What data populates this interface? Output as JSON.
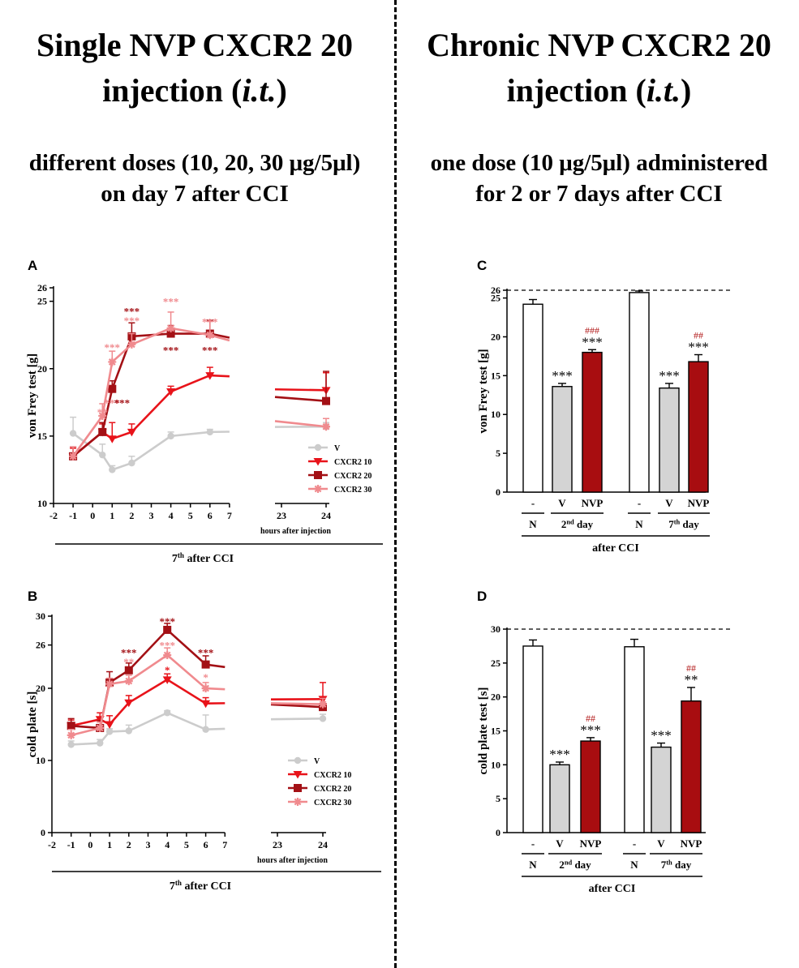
{
  "left_header": {
    "title_line1": "Single NVP CXCR2 20",
    "title_line2_a": "injection (",
    "title_line2_i": "i.t.",
    "title_line2_b": ")",
    "sub_line1": "different doses (10, 20, 30 μg/5μl)",
    "sub_line2": "on day 7 after CCI"
  },
  "right_header": {
    "title_line1": "Chronic NVP CXCR2 20",
    "title_line2_a": "injection (",
    "title_line2_i": "i.t.",
    "title_line2_b": ")",
    "sub_line1": "one dose (10 μg/5μl) administered",
    "sub_line2": "for 2 or 7 days after CCI"
  },
  "colors": {
    "V": "#cccccc",
    "CXCR2 10": "#e8131a",
    "CXCR2 20": "#a31015",
    "CXCR2 30": "#f08a8e",
    "NVP": "#a80d10",
    "sig": "#b21a1a"
  },
  "chart_data": [
    {
      "panel": "A",
      "type": "line",
      "ylabel": "von Frey test [g]",
      "xlabel": "hours after injection",
      "group_label": "7",
      "group_label_sup": "th",
      "group_label_rest": " after CCI",
      "ylim": [
        10,
        26
      ],
      "yticks": [
        "10",
        "15",
        "20",
        "25",
        "26"
      ],
      "xticks": [
        "-2",
        "-1",
        "0",
        "1",
        "2",
        "3",
        "4",
        "5",
        "6",
        "7",
        "23",
        "24"
      ],
      "series": [
        {
          "name": "V",
          "marker": "circle",
          "x": [
            -1,
            0.5,
            1,
            2,
            4,
            6,
            24
          ],
          "values": [
            15.2,
            13.6,
            12.5,
            13.0,
            15.0,
            15.3,
            15.7
          ],
          "err": [
            1.2,
            0.8,
            0.3,
            0.5,
            0.3,
            0.2,
            0.3
          ]
        },
        {
          "name": "CXCR2 10",
          "marker": "tri-down",
          "x": [
            -1,
            0.5,
            1,
            2,
            4,
            6,
            24
          ],
          "values": [
            13.5,
            15.3,
            14.8,
            15.3,
            18.3,
            19.5,
            18.4
          ],
          "err": [
            0.6,
            0.6,
            1.2,
            0.6,
            0.4,
            0.6,
            1.3
          ]
        },
        {
          "name": "CXCR2 20",
          "marker": "square",
          "x": [
            -1,
            0.5,
            1,
            2,
            4,
            6,
            24
          ],
          "values": [
            13.5,
            15.3,
            18.5,
            22.4,
            22.6,
            22.6,
            17.6
          ],
          "err": [
            0.7,
            0.7,
            0.6,
            1.0,
            0.6,
            1.0,
            2.2
          ]
        },
        {
          "name": "CXCR2 30",
          "marker": "star",
          "x": [
            -1,
            0.5,
            1,
            2,
            4,
            6,
            24
          ],
          "values": [
            13.5,
            16.5,
            20.5,
            21.8,
            23.0,
            22.5,
            15.7
          ],
          "err": [
            0.7,
            0.9,
            0.8,
            0.8,
            1.2,
            1.0,
            0.6
          ]
        }
      ],
      "annotations": [
        {
          "x": 0.5,
          "y": 16.8,
          "text": "**",
          "color": "#f08a8e"
        },
        {
          "x": 1,
          "y": 21.6,
          "text": "***",
          "color": "#f08a8e"
        },
        {
          "x": 1,
          "y": 17.5,
          "text": "***",
          "color": "#f08a8e"
        },
        {
          "x": 1.5,
          "y": 17.5,
          "text": "***",
          "color": "#a31015"
        },
        {
          "x": 2,
          "y": 24.3,
          "text": "***",
          "color": "#a31015"
        },
        {
          "x": 2,
          "y": 23.6,
          "text": "***",
          "color": "#f08a8e"
        },
        {
          "x": 4,
          "y": 25.0,
          "text": "***",
          "color": "#f08a8e"
        },
        {
          "x": 4,
          "y": 21.4,
          "text": "***",
          "color": "#a31015"
        },
        {
          "x": 6,
          "y": 23.5,
          "text": "***",
          "color": "#f08a8e"
        },
        {
          "x": 6,
          "y": 21.4,
          "text": "***",
          "color": "#a31015"
        }
      ]
    },
    {
      "panel": "B",
      "type": "line",
      "ylabel": "cold plate [s]",
      "xlabel": "hours after injection",
      "group_label": "7",
      "group_label_sup": "th",
      "group_label_rest": " after CCI",
      "ylim": [
        0,
        30
      ],
      "yticks": [
        "0",
        "10",
        "20",
        "26",
        "30"
      ],
      "xticks": [
        "-2",
        "-1",
        "0",
        "1",
        "2",
        "3",
        "4",
        "5",
        "6",
        "7",
        "23",
        "24"
      ],
      "series": [
        {
          "name": "V",
          "marker": "circle",
          "x": [
            -1,
            0.5,
            1,
            2,
            4,
            6,
            24
          ],
          "values": [
            12.2,
            12.4,
            14.0,
            14.1,
            16.6,
            14.3,
            15.8
          ],
          "err": [
            0.5,
            0.5,
            0.4,
            0.8,
            0.3,
            2.0,
            0.6
          ]
        },
        {
          "name": "CXCR2 10",
          "marker": "tri-down",
          "x": [
            -1,
            0.5,
            1,
            2,
            4,
            6,
            24
          ],
          "values": [
            14.8,
            15.7,
            15.0,
            18.0,
            21.2,
            17.9,
            18.5
          ],
          "err": [
            0.8,
            0.9,
            1.2,
            1.0,
            0.8,
            0.8,
            2.3
          ]
        },
        {
          "name": "CXCR2 20",
          "marker": "square",
          "x": [
            -1,
            0.5,
            1,
            2,
            4,
            6,
            24
          ],
          "values": [
            14.8,
            14.5,
            20.8,
            22.5,
            28.1,
            23.3,
            17.4
          ],
          "err": [
            1.0,
            1.0,
            1.5,
            1.0,
            0.9,
            1.2,
            1.2
          ]
        },
        {
          "name": "CXCR2 30",
          "marker": "star",
          "x": [
            -1,
            0.5,
            1,
            2,
            4,
            6,
            24
          ],
          "values": [
            13.5,
            14.5,
            20.6,
            21.0,
            24.6,
            20.0,
            17.8
          ],
          "err": [
            0.8,
            0.8,
            0.8,
            0.8,
            1.0,
            0.8,
            0.8
          ]
        }
      ],
      "annotations": [
        {
          "x": 2,
          "y": 25.0,
          "text": "***",
          "color": "#a31015"
        },
        {
          "x": 2,
          "y": 23.7,
          "text": "**",
          "color": "#f08a8e"
        },
        {
          "x": 4,
          "y": 29.3,
          "text": "***",
          "color": "#a31015"
        },
        {
          "x": 4,
          "y": 26.0,
          "text": "***",
          "color": "#f08a8e"
        },
        {
          "x": 4,
          "y": 22.6,
          "text": "*",
          "color": "#e8131a"
        },
        {
          "x": 6,
          "y": 25.0,
          "text": "***",
          "color": "#a31015"
        },
        {
          "x": 6,
          "y": 21.6,
          "text": "*",
          "color": "#f08a8e"
        }
      ]
    },
    {
      "panel": "C",
      "type": "bar",
      "ylabel": "von Frey test [g]",
      "ylim": [
        0,
        26
      ],
      "yticks": [
        "0",
        "5",
        "10",
        "15",
        "20",
        "25",
        "26"
      ],
      "reference_line": 26,
      "bottom_label": "after CCI",
      "bars": [
        {
          "label": "-",
          "group": "N",
          "value": 24.2,
          "err": 0.6,
          "color": "#ffffff",
          "sig": "",
          "sig2": ""
        },
        {
          "label": "V",
          "group": "2nd day",
          "value": 13.6,
          "err": 0.4,
          "color": "#d4d4d4",
          "sig": "***",
          "sig2": ""
        },
        {
          "label": "NVP",
          "group": "2nd day",
          "value": 18.0,
          "err": 0.35,
          "color": "#a80d10",
          "sig": "***",
          "sig2": "###"
        },
        {
          "label": "-",
          "group": "N",
          "value": 25.7,
          "err": 0.2,
          "color": "#ffffff",
          "sig": "",
          "sig2": ""
        },
        {
          "label": "V",
          "group": "7th day",
          "value": 13.4,
          "err": 0.6,
          "color": "#d4d4d4",
          "sig": "***",
          "sig2": ""
        },
        {
          "label": "NVP",
          "group": "7th day",
          "value": 16.8,
          "err": 0.9,
          "color": "#a80d10",
          "sig": "***",
          "sig2": "##"
        }
      ],
      "groups": [
        {
          "name": "N",
          "sup": "",
          "rest": ""
        },
        {
          "name": "2",
          "sup": "nd",
          "rest": " day"
        },
        {
          "name": "N",
          "sup": "",
          "rest": ""
        },
        {
          "name": "7",
          "sup": "th",
          "rest": " day"
        }
      ]
    },
    {
      "panel": "D",
      "type": "bar",
      "ylabel": "cold plate test  [s]",
      "ylim": [
        0,
        30
      ],
      "yticks": [
        "0",
        "5",
        "10",
        "15",
        "20",
        "25",
        "30"
      ],
      "reference_line": 30,
      "bottom_label": "after CCI",
      "bars": [
        {
          "label": "-",
          "group": "N",
          "value": 27.5,
          "err": 0.9,
          "color": "#ffffff",
          "sig": "",
          "sig2": ""
        },
        {
          "label": "V",
          "group": "2nd day",
          "value": 10.0,
          "err": 0.4,
          "color": "#d4d4d4",
          "sig": "***",
          "sig2": ""
        },
        {
          "label": "NVP",
          "group": "2nd day",
          "value": 13.5,
          "err": 0.5,
          "color": "#a80d10",
          "sig": "***",
          "sig2": "##"
        },
        {
          "label": "-",
          "group": "N",
          "value": 27.4,
          "err": 1.1,
          "color": "#ffffff",
          "sig": "",
          "sig2": ""
        },
        {
          "label": "V",
          "group": "7th day",
          "value": 12.6,
          "err": 0.6,
          "color": "#d4d4d4",
          "sig": "***",
          "sig2": ""
        },
        {
          "label": "NVP",
          "group": "7th day",
          "value": 19.4,
          "err": 2.0,
          "color": "#a80d10",
          "sig": "**",
          "sig2": "##"
        }
      ],
      "groups": [
        {
          "name": "N",
          "sup": "",
          "rest": ""
        },
        {
          "name": "2",
          "sup": "nd",
          "rest": " day"
        },
        {
          "name": "N",
          "sup": "",
          "rest": ""
        },
        {
          "name": "7",
          "sup": "th",
          "rest": " day"
        }
      ]
    }
  ]
}
